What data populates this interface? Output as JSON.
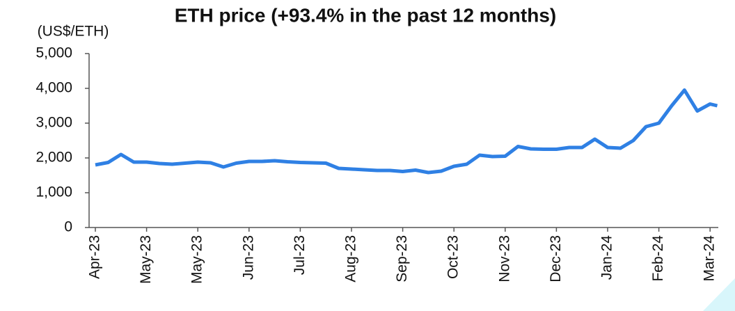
{
  "chart_data": {
    "type": "line",
    "title": "ETH price (+93.4% in the past 12 months)",
    "y_label": "(US$/ETH)",
    "x": [
      0,
      0.25,
      0.5,
      0.75,
      1,
      1.25,
      1.5,
      1.75,
      2,
      2.25,
      2.5,
      2.75,
      3,
      3.25,
      3.5,
      3.75,
      4,
      4.25,
      4.5,
      4.75,
      5,
      5.25,
      5.5,
      5.75,
      6,
      6.25,
      6.5,
      6.75,
      7,
      7.25,
      7.5,
      7.75,
      8,
      8.25,
      8.5,
      8.75,
      9,
      9.25,
      9.5,
      9.75,
      10,
      10.25,
      10.5,
      10.75,
      11,
      11.25,
      11.5,
      11.75,
      12,
      12.14
    ],
    "series": [
      {
        "name": "ETH price",
        "color": "#2f80e4",
        "values": [
          1800,
          1870,
          2100,
          1880,
          1880,
          1840,
          1820,
          1850,
          1880,
          1860,
          1740,
          1850,
          1900,
          1900,
          1920,
          1890,
          1870,
          1860,
          1850,
          1700,
          1680,
          1660,
          1640,
          1640,
          1610,
          1650,
          1580,
          1620,
          1760,
          1820,
          2080,
          2040,
          2050,
          2330,
          2260,
          2250,
          2250,
          2300,
          2300,
          2540,
          2300,
          2280,
          2500,
          2900,
          3000,
          3500,
          3950,
          3350,
          3550,
          3500
        ]
      }
    ],
    "xlim": [
      0,
      12.14
    ],
    "xticks": [
      {
        "value": 0,
        "label": "Apr-23"
      },
      {
        "value": 1,
        "label": "May-23"
      },
      {
        "value": 2,
        "label": "May-23"
      },
      {
        "value": 3,
        "label": "Jun-23"
      },
      {
        "value": 4,
        "label": "Jul-23"
      },
      {
        "value": 5,
        "label": "Aug-23"
      },
      {
        "value": 6,
        "label": "Sep-23"
      },
      {
        "value": 7,
        "label": "Oct-23"
      },
      {
        "value": 8,
        "label": "Nov-23"
      },
      {
        "value": 9,
        "label": "Dec-23"
      },
      {
        "value": 10,
        "label": "Jan-24"
      },
      {
        "value": 11,
        "label": "Feb-24"
      },
      {
        "value": 12,
        "label": "Mar-24"
      }
    ],
    "ylim": [
      0,
      5000
    ],
    "yticks": [
      0,
      {
        "value": 1000,
        "label": "1,000"
      },
      {
        "value": 2000,
        "label": "2,000"
      },
      {
        "value": 3000,
        "label": "3,000"
      },
      {
        "value": 4000,
        "label": "4,000"
      },
      {
        "value": 5000,
        "label": "5,000"
      }
    ],
    "grid": false
  }
}
